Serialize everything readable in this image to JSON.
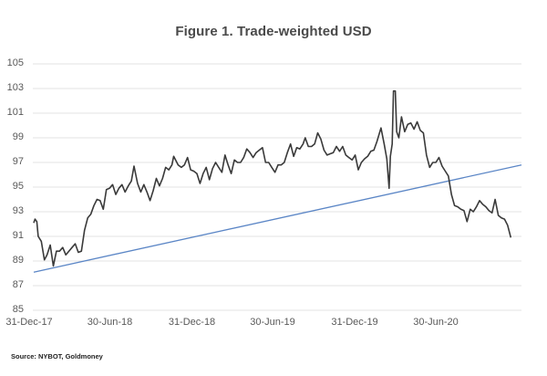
{
  "chart_data": {
    "type": "line",
    "title": "Figure 1. Trade-weighted USD",
    "xlabel": "",
    "ylabel": "",
    "ylim": [
      85,
      105
    ],
    "yticks": [
      105,
      103,
      101,
      99,
      97,
      95,
      93,
      91,
      89,
      87,
      85
    ],
    "xticks": [
      "31-Dec-17",
      "30-Jun-18",
      "31-Dec-18",
      "30-Jun-19",
      "31-Dec-19",
      "30-Jun-20"
    ],
    "grid": "horizontal",
    "legend": "none",
    "source": "Source: NYBOT, Goldmoney",
    "series": [
      {
        "name": "Trade-weighted USD (DXY)",
        "color": "#3a3a3a",
        "points": [
          [
            "2018-01-02",
            92.1
          ],
          [
            "2018-01-05",
            92.4
          ],
          [
            "2018-01-09",
            92.2
          ],
          [
            "2018-01-12",
            91.0
          ],
          [
            "2018-01-19",
            90.6
          ],
          [
            "2018-01-26",
            89.1
          ],
          [
            "2018-02-01",
            89.5
          ],
          [
            "2018-02-08",
            90.3
          ],
          [
            "2018-02-15",
            88.6
          ],
          [
            "2018-02-22",
            89.8
          ],
          [
            "2018-03-01",
            89.8
          ],
          [
            "2018-03-08",
            90.1
          ],
          [
            "2018-03-15",
            89.5
          ],
          [
            "2018-03-22",
            89.8
          ],
          [
            "2018-03-29",
            90.1
          ],
          [
            "2018-04-05",
            90.4
          ],
          [
            "2018-04-12",
            89.7
          ],
          [
            "2018-04-19",
            89.8
          ],
          [
            "2018-04-26",
            91.5
          ],
          [
            "2018-05-03",
            92.5
          ],
          [
            "2018-05-10",
            92.8
          ],
          [
            "2018-05-17",
            93.5
          ],
          [
            "2018-05-24",
            94.0
          ],
          [
            "2018-05-31",
            93.9
          ],
          [
            "2018-06-07",
            93.2
          ],
          [
            "2018-06-14",
            94.8
          ],
          [
            "2018-06-21",
            94.9
          ],
          [
            "2018-06-28",
            95.2
          ],
          [
            "2018-07-05",
            94.4
          ],
          [
            "2018-07-12",
            94.9
          ],
          [
            "2018-07-19",
            95.2
          ],
          [
            "2018-07-26",
            94.6
          ],
          [
            "2018-08-02",
            95.1
          ],
          [
            "2018-08-09",
            95.5
          ],
          [
            "2018-08-15",
            96.7
          ],
          [
            "2018-08-23",
            95.3
          ],
          [
            "2018-08-30",
            94.6
          ],
          [
            "2018-09-06",
            95.2
          ],
          [
            "2018-09-13",
            94.6
          ],
          [
            "2018-09-20",
            93.9
          ],
          [
            "2018-09-27",
            94.7
          ],
          [
            "2018-10-04",
            95.7
          ],
          [
            "2018-10-11",
            95.1
          ],
          [
            "2018-10-18",
            95.7
          ],
          [
            "2018-10-25",
            96.6
          ],
          [
            "2018-11-01",
            96.4
          ],
          [
            "2018-11-08",
            96.8
          ],
          [
            "2018-11-12",
            97.5
          ],
          [
            "2018-11-22",
            96.8
          ],
          [
            "2018-11-29",
            96.6
          ],
          [
            "2018-12-06",
            96.8
          ],
          [
            "2018-12-13",
            97.4
          ],
          [
            "2018-12-20",
            96.4
          ],
          [
            "2018-12-27",
            96.3
          ],
          [
            "2019-01-03",
            96.1
          ],
          [
            "2019-01-10",
            95.3
          ],
          [
            "2019-01-17",
            96.1
          ],
          [
            "2019-01-24",
            96.6
          ],
          [
            "2019-01-31",
            95.6
          ],
          [
            "2019-02-07",
            96.5
          ],
          [
            "2019-02-14",
            97.0
          ],
          [
            "2019-02-21",
            96.6
          ],
          [
            "2019-02-28",
            96.2
          ],
          [
            "2019-03-07",
            97.6
          ],
          [
            "2019-03-14",
            96.8
          ],
          [
            "2019-03-21",
            96.1
          ],
          [
            "2019-03-28",
            97.2
          ],
          [
            "2019-04-04",
            97.0
          ],
          [
            "2019-04-11",
            97.0
          ],
          [
            "2019-04-18",
            97.4
          ],
          [
            "2019-04-25",
            98.1
          ],
          [
            "2019-05-02",
            97.8
          ],
          [
            "2019-05-09",
            97.4
          ],
          [
            "2019-05-16",
            97.8
          ],
          [
            "2019-05-23",
            98.0
          ],
          [
            "2019-05-30",
            98.2
          ],
          [
            "2019-06-06",
            97.0
          ],
          [
            "2019-06-13",
            97.0
          ],
          [
            "2019-06-20",
            96.6
          ],
          [
            "2019-06-27",
            96.2
          ],
          [
            "2019-07-04",
            96.8
          ],
          [
            "2019-07-11",
            96.8
          ],
          [
            "2019-07-18",
            97.0
          ],
          [
            "2019-07-25",
            97.8
          ],
          [
            "2019-08-01",
            98.5
          ],
          [
            "2019-08-08",
            97.5
          ],
          [
            "2019-08-15",
            98.2
          ],
          [
            "2019-08-22",
            98.1
          ],
          [
            "2019-08-29",
            98.5
          ],
          [
            "2019-09-03",
            99.0
          ],
          [
            "2019-09-10",
            98.3
          ],
          [
            "2019-09-17",
            98.3
          ],
          [
            "2019-09-24",
            98.5
          ],
          [
            "2019-10-01",
            99.4
          ],
          [
            "2019-10-08",
            98.9
          ],
          [
            "2019-10-15",
            98.0
          ],
          [
            "2019-10-22",
            97.6
          ],
          [
            "2019-10-29",
            97.7
          ],
          [
            "2019-11-05",
            97.8
          ],
          [
            "2019-11-12",
            98.3
          ],
          [
            "2019-11-19",
            97.9
          ],
          [
            "2019-11-26",
            98.3
          ],
          [
            "2019-12-03",
            97.6
          ],
          [
            "2019-12-10",
            97.4
          ],
          [
            "2019-12-17",
            97.2
          ],
          [
            "2019-12-24",
            97.6
          ],
          [
            "2019-12-31",
            96.4
          ],
          [
            "2020-01-07",
            97.0
          ],
          [
            "2020-01-14",
            97.3
          ],
          [
            "2020-01-21",
            97.5
          ],
          [
            "2020-01-28",
            97.9
          ],
          [
            "2020-02-04",
            98.0
          ],
          [
            "2020-02-11",
            98.7
          ],
          [
            "2020-02-20",
            99.8
          ],
          [
            "2020-02-27",
            98.5
          ],
          [
            "2020-03-04",
            97.3
          ],
          [
            "2020-03-09",
            94.9
          ],
          [
            "2020-03-12",
            97.5
          ],
          [
            "2020-03-16",
            98.5
          ],
          [
            "2020-03-19",
            102.8
          ],
          [
            "2020-03-23",
            102.8
          ],
          [
            "2020-03-26",
            99.5
          ],
          [
            "2020-03-31",
            99.0
          ],
          [
            "2020-04-06",
            100.7
          ],
          [
            "2020-04-13",
            99.5
          ],
          [
            "2020-04-20",
            100.1
          ],
          [
            "2020-04-27",
            100.2
          ],
          [
            "2020-05-04",
            99.7
          ],
          [
            "2020-05-11",
            100.3
          ],
          [
            "2020-05-18",
            99.6
          ],
          [
            "2020-05-25",
            99.4
          ],
          [
            "2020-06-01",
            97.6
          ],
          [
            "2020-06-08",
            96.6
          ],
          [
            "2020-06-15",
            97.0
          ],
          [
            "2020-06-22",
            97.0
          ],
          [
            "2020-06-29",
            97.4
          ],
          [
            "2020-07-06",
            96.7
          ],
          [
            "2020-07-13",
            96.3
          ],
          [
            "2020-07-20",
            95.9
          ],
          [
            "2020-07-27",
            94.4
          ],
          [
            "2020-08-03",
            93.5
          ],
          [
            "2020-08-10",
            93.4
          ],
          [
            "2020-08-17",
            93.2
          ],
          [
            "2020-08-24",
            93.1
          ],
          [
            "2020-08-31",
            92.2
          ],
          [
            "2020-09-07",
            93.2
          ],
          [
            "2020-09-14",
            93.0
          ],
          [
            "2020-09-21",
            93.4
          ],
          [
            "2020-09-28",
            93.9
          ],
          [
            "2020-10-05",
            93.6
          ],
          [
            "2020-10-12",
            93.4
          ],
          [
            "2020-10-19",
            93.1
          ],
          [
            "2020-10-26",
            92.9
          ],
          [
            "2020-11-02",
            94.0
          ],
          [
            "2020-11-09",
            92.7
          ],
          [
            "2020-11-16",
            92.5
          ],
          [
            "2020-11-23",
            92.4
          ],
          [
            "2020-11-30",
            91.9
          ],
          [
            "2020-12-07",
            90.9
          ]
        ]
      },
      {
        "name": "Trend line",
        "color": "#5b86c6",
        "points": [
          [
            "2018-01-02",
            88.1
          ],
          [
            "2020-12-31",
            96.8
          ]
        ]
      }
    ]
  }
}
